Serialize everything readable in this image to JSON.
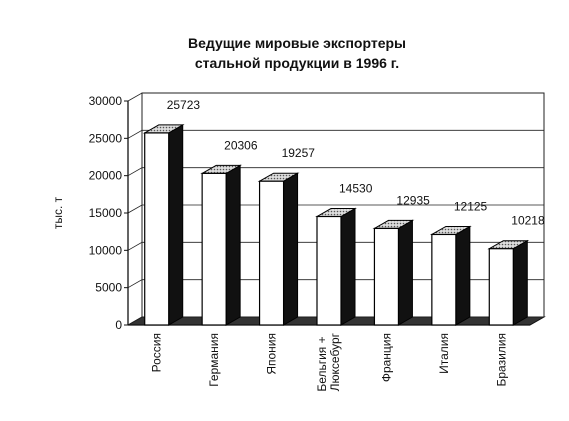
{
  "chart_data": {
    "type": "bar3d",
    "title": [
      "Ведущие мировые экспортеры",
      "стальной продукции в 1996 г."
    ],
    "y_label": "тыс. т",
    "categories": [
      "Россия",
      "Германия",
      "Япония",
      "Бельгия + Люксебург",
      "Франция",
      "Италия",
      "Бразилия"
    ],
    "values": [
      25723,
      20306,
      19257,
      14530,
      12935,
      12125,
      10218
    ],
    "ylim": [
      0,
      30000
    ],
    "yticks": [
      0,
      5000,
      10000,
      15000,
      20000,
      25000,
      30000
    ],
    "grid": true,
    "color": "#ffffff",
    "side_color": "#111111",
    "top_color": "#bbbbbb"
  }
}
